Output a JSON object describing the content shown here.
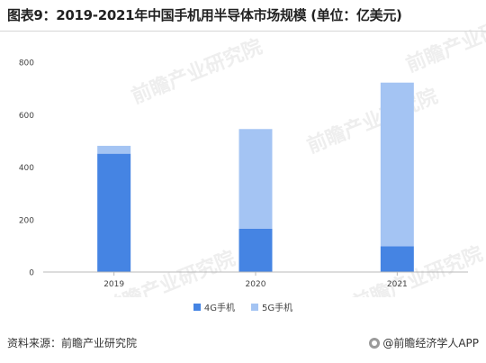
{
  "title": "图表9：2019-2021年中国手机用半导体市场规模 (单位：亿美元)",
  "source": "资料来源：前瞻产业研究院",
  "brand": "@前瞻经济学人APP",
  "watermark": "前瞻产业研究院",
  "colors": {
    "4G": "#4584e3",
    "5G": "#a4c4f3"
  },
  "chart_data": {
    "type": "bar",
    "stacked": true,
    "categories": [
      "2019",
      "2020",
      "2021"
    ],
    "series": [
      {
        "name": "4G手机",
        "values": [
          451,
          165,
          98
        ]
      },
      {
        "name": "5G手机",
        "values": [
          30,
          380,
          624
        ]
      }
    ],
    "ylim": [
      0,
      800
    ],
    "yticks": [
      0,
      200,
      400,
      600,
      800
    ],
    "grid": false,
    "legend_position": "bottom"
  }
}
